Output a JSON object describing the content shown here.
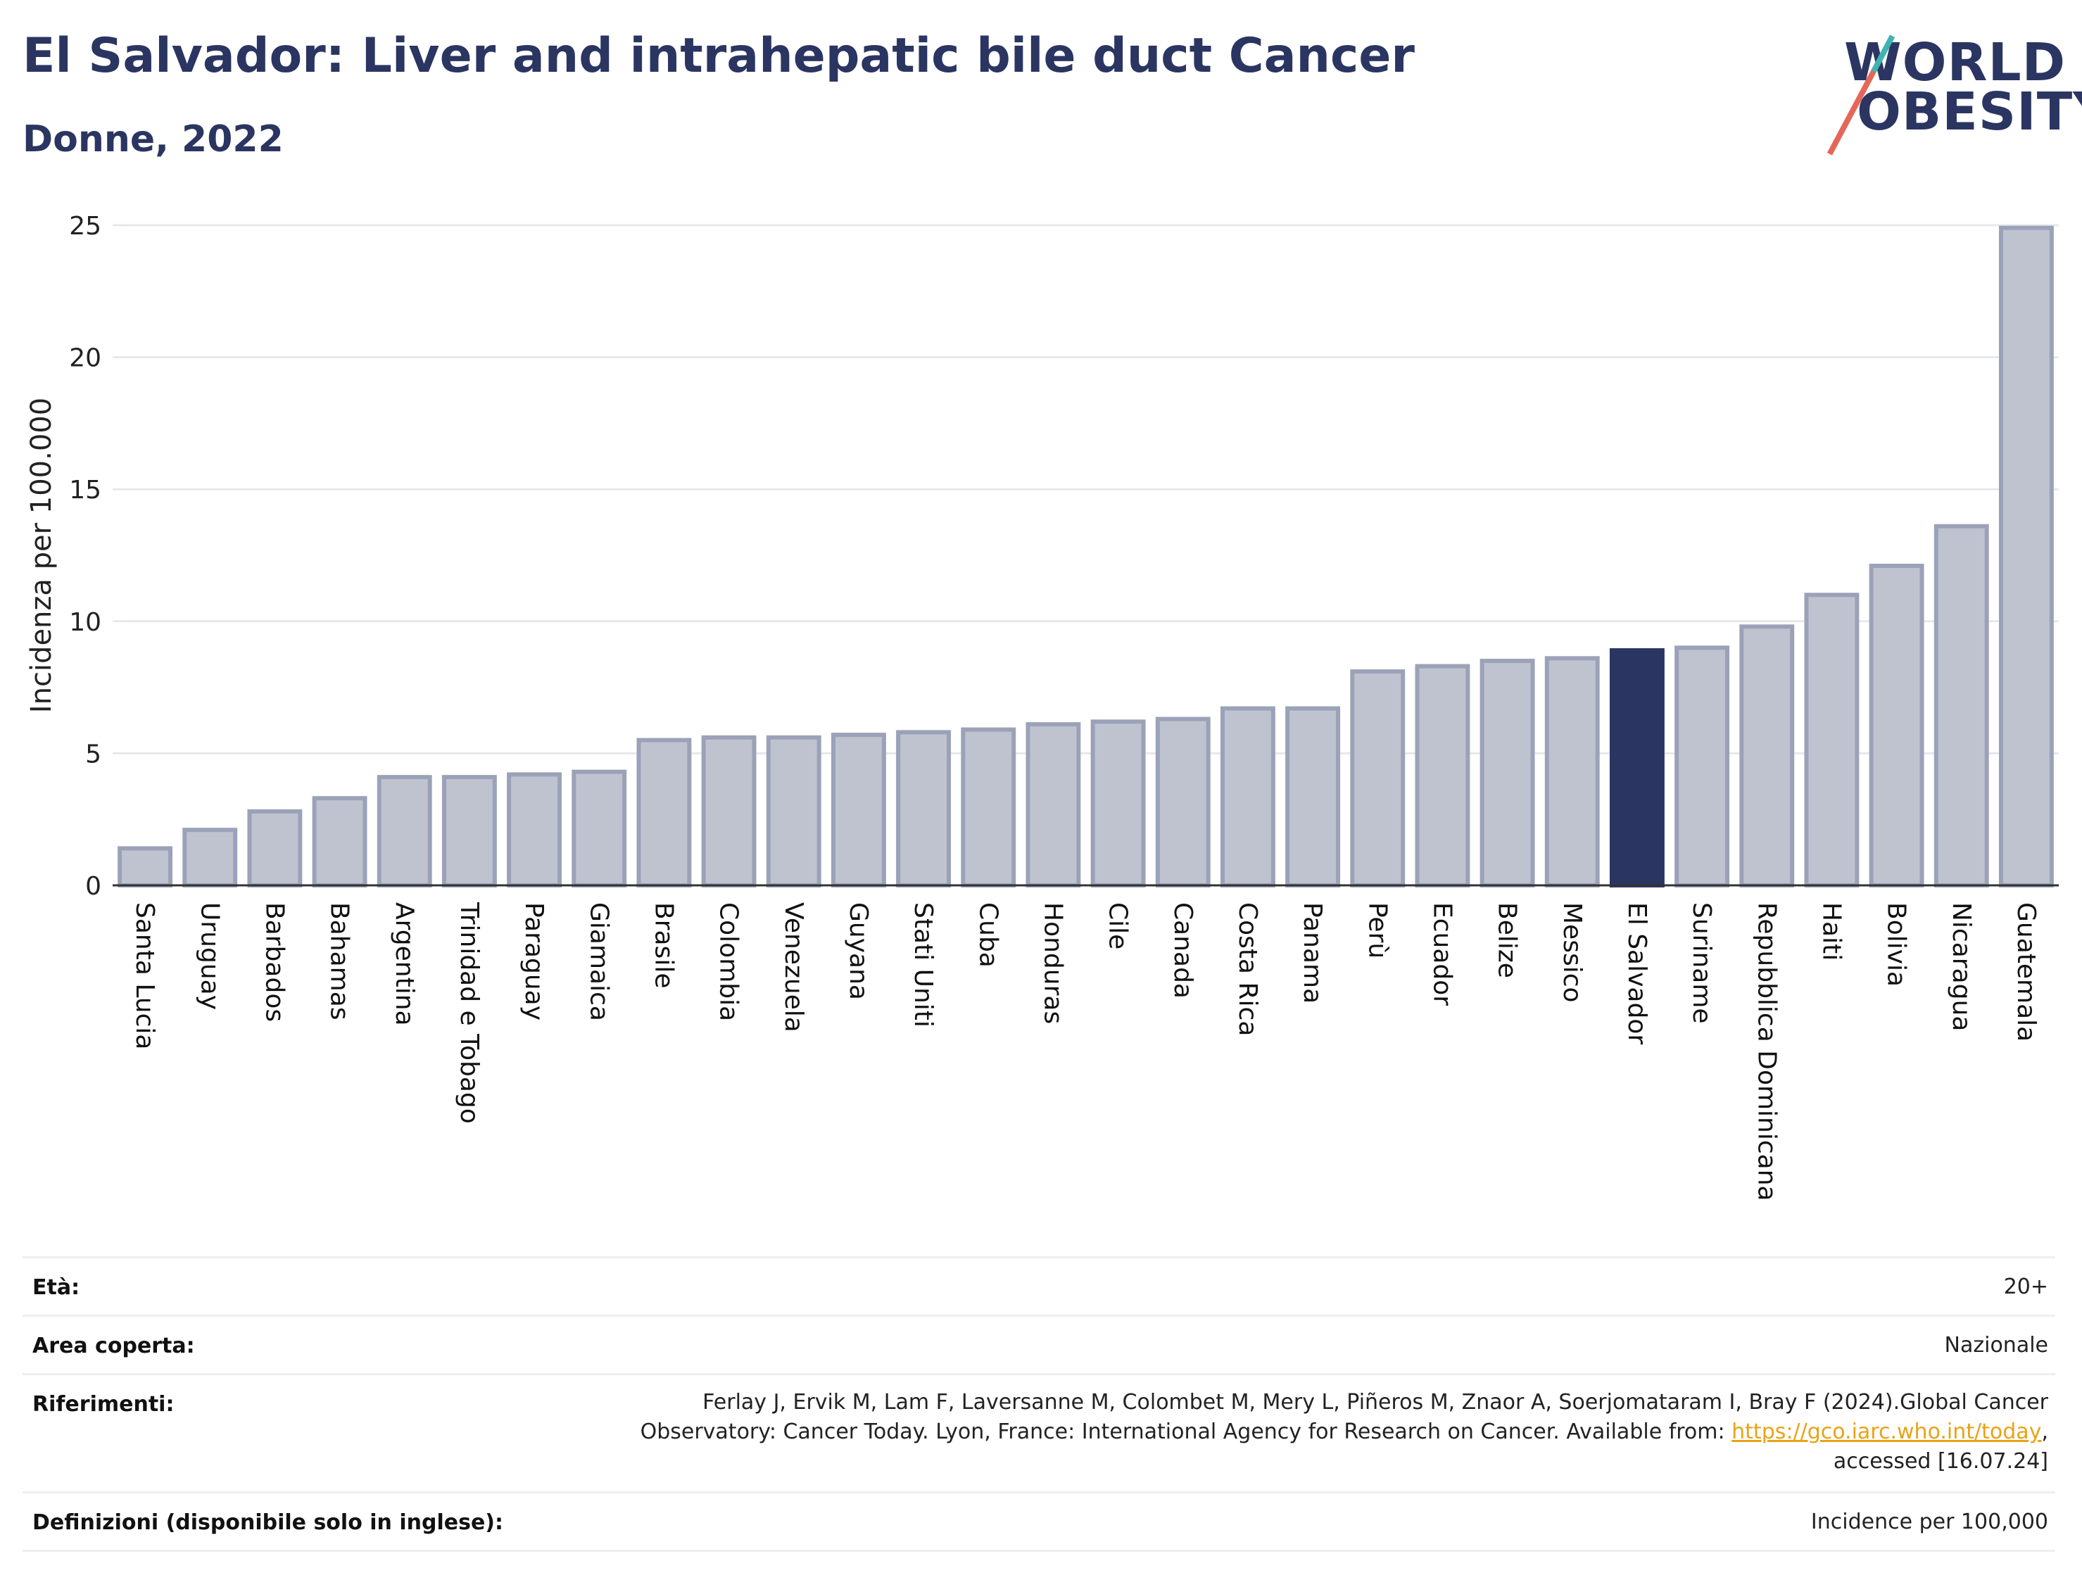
{
  "header": {
    "title": "El Salvador: Liver and intrahepatic bile duct Cancer",
    "subtitle": "Donne, 2022"
  },
  "logo": {
    "line1": "WORLD",
    "line2": "OBESITY",
    "accent_colors": [
      "#3fb4b0",
      "#e5665a"
    ]
  },
  "colors": {
    "bar": "#bfc3d0",
    "bar_border": "#9ba2b8",
    "highlight": "#2b3561",
    "grid": "#e6e8ee",
    "axis": "#333333"
  },
  "chart_data": {
    "type": "bar",
    "ylabel": "Incidenza per 100.000",
    "ylim": [
      0,
      25
    ],
    "yticks": [
      0,
      5,
      10,
      15,
      20,
      25
    ],
    "grid": true,
    "highlight": "El Salvador",
    "categories": [
      "Santa Lucia",
      "Uruguay",
      "Barbados",
      "Bahamas",
      "Argentina",
      "Trinidad e Tobago",
      "Paraguay",
      "Giamaica",
      "Brasile",
      "Colombia",
      "Venezuela",
      "Guyana",
      "Stati Uniti",
      "Cuba",
      "Honduras",
      "Cile",
      "Canada",
      "Costa Rica",
      "Panama",
      "Perù",
      "Ecuador",
      "Belize",
      "Messico",
      "El Salvador",
      "Suriname",
      "Repubblica Dominicana",
      "Haiti",
      "Bolivia",
      "Nicaragua",
      "Guatemala"
    ],
    "values": [
      1.4,
      2.1,
      2.8,
      3.3,
      4.1,
      4.1,
      4.2,
      4.3,
      5.5,
      5.6,
      5.6,
      5.7,
      5.8,
      5.9,
      6.1,
      6.2,
      6.3,
      6.7,
      6.7,
      8.1,
      8.3,
      8.5,
      8.6,
      8.9,
      9.0,
      9.8,
      11.0,
      12.1,
      13.6,
      24.9
    ]
  },
  "info": {
    "age_label": "Età:",
    "age_value": "20+",
    "area_label": "Area coperta:",
    "area_value": "Nazionale",
    "refs_label": "Riferimenti:",
    "refs_line1": "Ferlay J, Ervik M, Lam F, Laversanne M, Colombet M, Mery L, Piñeros M, Znaor A, Soerjomataram I, Bray F (2024).Global Cancer",
    "refs_line2_pre": "Observatory: Cancer Today. Lyon, France: International Agency for Research on Cancer. Available from: ",
    "refs_link": "https://gco.iarc.who.int/today",
    "refs_line2_post": ",",
    "refs_line3": "accessed [16.07.24]",
    "defs_label": "Definizioni (disponibile solo in inglese):",
    "defs_value": "Incidence per 100,000"
  }
}
